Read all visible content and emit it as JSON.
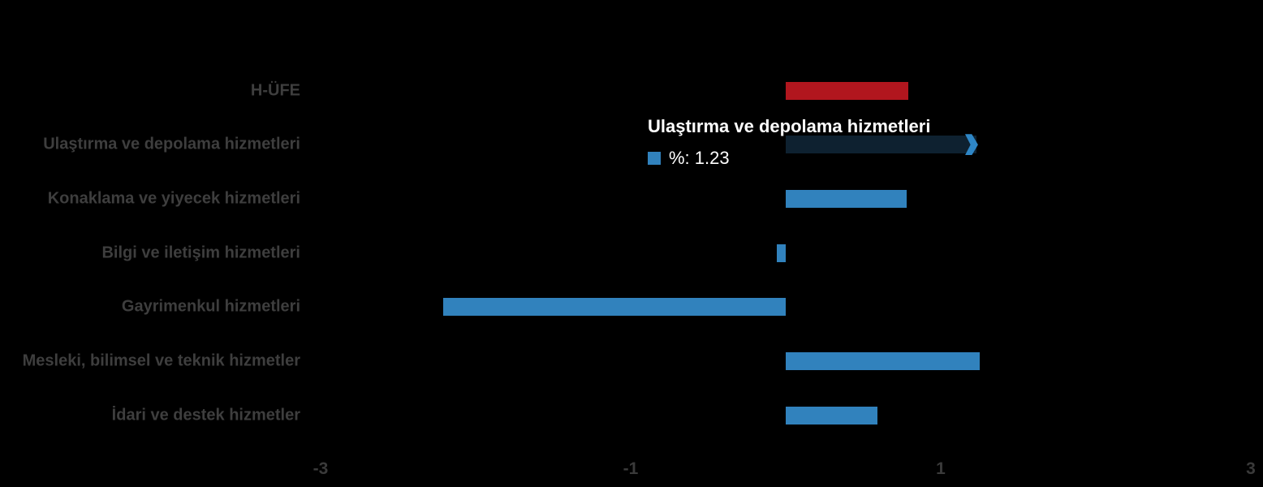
{
  "chart_data": {
    "type": "bar",
    "orientation": "horizontal",
    "title": "",
    "xlabel": "",
    "ylabel": "",
    "unit": "%",
    "categories": [
      "H-ÜFE",
      "Ulaştırma ve depolama hizmetleri",
      "Konaklama ve yiyecek hizmetleri",
      "Bilgi ve iletişim hizmetleri",
      "Gayrimenkul hizmetleri",
      "Mesleki, bilimsel ve teknik hizmetler",
      "İdari ve destek hizmetler"
    ],
    "values": [
      0.79,
      1.23,
      0.78,
      -0.06,
      -2.21,
      1.25,
      0.59
    ],
    "bar_color_keys": [
      "hufe",
      "highlight",
      "default",
      "default",
      "default",
      "default",
      "default"
    ],
    "highlighted_index": 1,
    "xlim": [
      -3,
      3
    ],
    "xticks": [
      -3,
      -1,
      1,
      3
    ],
    "xtick_labels": [
      "-3",
      "-1",
      "1",
      "3"
    ],
    "grid": false,
    "legend_position": "none",
    "palette": {
      "default": "#3182BD",
      "hufe": "#B1161E",
      "highlight": "#0E2130",
      "highlight_arrow": "#2E86C6"
    },
    "style": {
      "background": "#000000",
      "category_label_color": "#3E3E3E",
      "tick_label_color": "#3A3A3A"
    }
  },
  "tooltip": {
    "title": "Ulaştırma ve depolama hizmetleri",
    "value_label": "%: 1.23",
    "marker_color": "#3182BD",
    "text_color": "#FFFFFF"
  }
}
